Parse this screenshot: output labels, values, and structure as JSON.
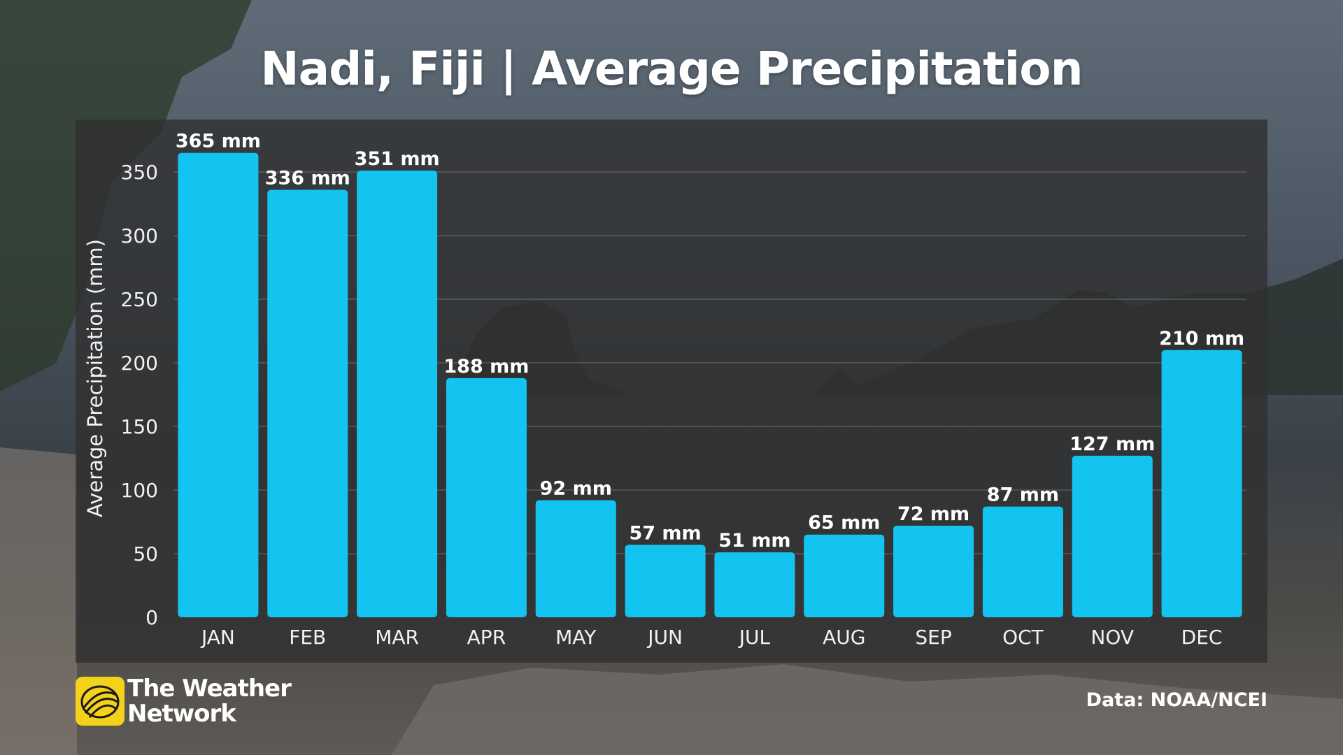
{
  "title": "Nadi, Fiji | Average Precipitation",
  "brand": {
    "line1": "The Weather",
    "line2": "Network",
    "logo_color": "#f4d21c"
  },
  "source": "Data: NOAA/NCEI",
  "colors": {
    "bar": "#13c4f1",
    "panel": "#303030",
    "text": "#ffffff"
  },
  "chart_data": {
    "type": "bar",
    "title": "Nadi, Fiji | Average Precipitation",
    "xlabel": "",
    "ylabel": "Average Precipitation (mm)",
    "categories": [
      "JAN",
      "FEB",
      "MAR",
      "APR",
      "MAY",
      "JUN",
      "JUL",
      "AUG",
      "SEP",
      "OCT",
      "NOV",
      "DEC"
    ],
    "values": [
      365,
      336,
      351,
      188,
      92,
      57,
      51,
      65,
      72,
      87,
      127,
      210
    ],
    "data_labels": [
      "365 mm",
      "336 mm",
      "351 mm",
      "188 mm",
      "92 mm",
      "57 mm",
      "51 mm",
      "65 mm",
      "72 mm",
      "87 mm",
      "127 mm",
      "210 mm"
    ],
    "yticks": [
      0,
      50,
      100,
      150,
      200,
      250,
      300,
      350
    ],
    "ylim": [
      0,
      350
    ],
    "grid": true,
    "legend": "none"
  }
}
